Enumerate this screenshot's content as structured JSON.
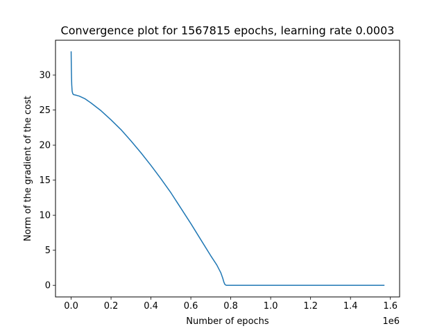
{
  "chart_data": {
    "type": "line",
    "title": "Convergence plot for 1567815 epochs, learning rate 0.0003",
    "xlabel": "Number of epochs",
    "ylabel": "Norm of the gradient of the cost",
    "x_offset_label": "1e6",
    "xlim": [
      -78390,
      1646205
    ],
    "ylim": [
      -1.66,
      34.96
    ],
    "x_ticks": [
      0,
      200000,
      400000,
      600000,
      800000,
      1000000,
      1200000,
      1400000,
      1600000
    ],
    "x_tick_labels": [
      "0.0",
      "0.2",
      "0.4",
      "0.6",
      "0.8",
      "1.0",
      "1.2",
      "1.4",
      "1.6"
    ],
    "y_ticks": [
      0,
      5,
      10,
      15,
      20,
      25,
      30
    ],
    "y_tick_labels": [
      "0",
      "5",
      "10",
      "15",
      "20",
      "25",
      "30"
    ],
    "grid": false,
    "legend": "none",
    "line_color": "#1f77b4",
    "series": [
      {
        "x": [
          0,
          1000,
          2000,
          3000,
          5000,
          8000,
          12000,
          20000,
          40000,
          70000,
          100000,
          150000,
          200000,
          250000,
          300000,
          350000,
          400000,
          450000,
          500000,
          550000,
          600000,
          650000,
          700000,
          730000,
          750000,
          760000,
          765000,
          770000,
          775000,
          778000,
          800000,
          1000000,
          1200000,
          1400000,
          1567815
        ],
        "y": [
          33.3,
          31.0,
          29.6,
          28.6,
          27.7,
          27.35,
          27.2,
          27.15,
          27.0,
          26.6,
          26.0,
          24.9,
          23.6,
          22.2,
          20.6,
          18.9,
          17.1,
          15.2,
          13.2,
          11.0,
          8.8,
          6.5,
          4.2,
          2.9,
          1.8,
          1.0,
          0.5,
          0.15,
          0.03,
          0.0,
          0.0,
          0.0,
          0.0,
          0.0,
          0.0
        ]
      }
    ]
  }
}
